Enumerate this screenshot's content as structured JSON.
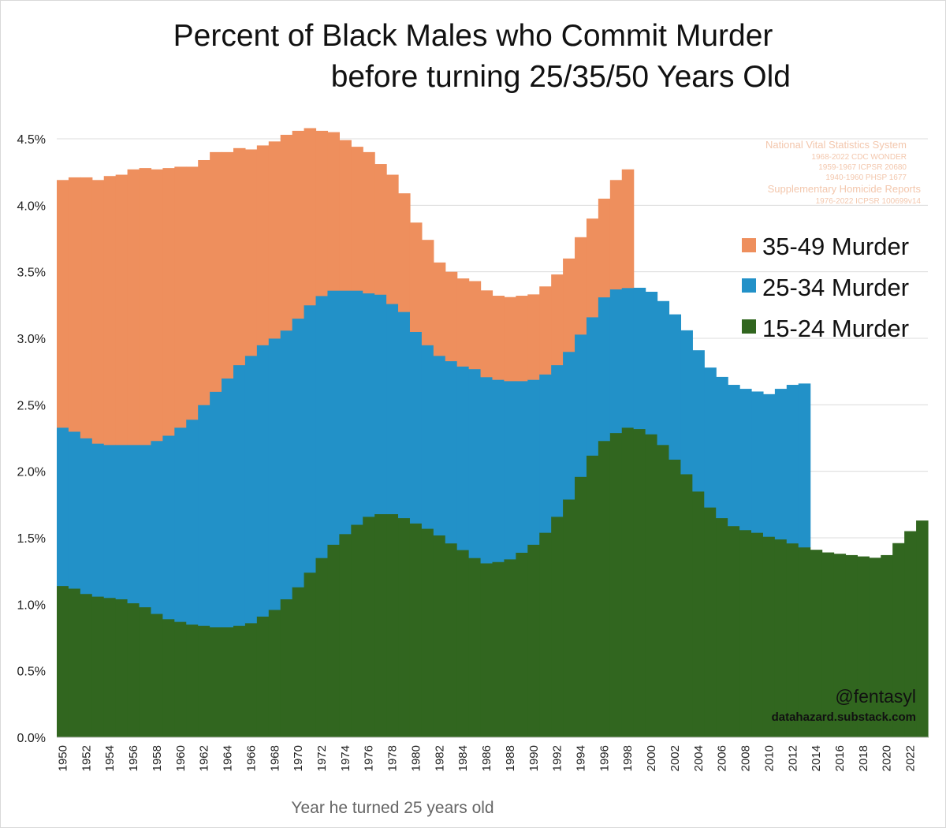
{
  "chart_data": {
    "type": "bar",
    "stacked": true,
    "title_lines": [
      "Percent of Black Males who Commit Murder",
      "before turning 25/35/50 Years Old"
    ],
    "xlabel": "Year he turned 25 years old",
    "ylabel": "",
    "ylim": [
      0,
      4.5
    ],
    "y_ticks": [
      0,
      0.5,
      1,
      1.5,
      2,
      2.5,
      3,
      3.5,
      4,
      4.5
    ],
    "y_tick_labels": [
      "0.0%",
      "0.5%",
      "1.0%",
      "1.5%",
      "2.0%",
      "2.5%",
      "3.0%",
      "3.5%",
      "4.0%",
      "4.5%"
    ],
    "x_ticks": [
      "1950",
      "1952",
      "1954",
      "1956",
      "1958",
      "1960",
      "1962",
      "1964",
      "1966",
      "1968",
      "1970",
      "1972",
      "1974",
      "1976",
      "1978",
      "1980",
      "1982",
      "1984",
      "1986",
      "1988",
      "1990",
      "1992",
      "1994",
      "1996",
      "1998",
      "2000",
      "2002",
      "2004",
      "2006",
      "2008",
      "2010",
      "2012",
      "2014",
      "2016",
      "2018",
      "2020",
      "2022"
    ],
    "grid": true,
    "legend_position": "right",
    "years_start": 1950,
    "years_end": 2023,
    "series": [
      {
        "name": "15-24 Murder",
        "color": "#31661f",
        "values": [
          1.14,
          1.12,
          1.08,
          1.06,
          1.05,
          1.04,
          1.01,
          0.98,
          0.93,
          0.89,
          0.87,
          0.85,
          0.84,
          0.83,
          0.83,
          0.84,
          0.86,
          0.91,
          0.96,
          1.04,
          1.13,
          1.24,
          1.35,
          1.45,
          1.53,
          1.6,
          1.66,
          1.68,
          1.68,
          1.65,
          1.61,
          1.57,
          1.52,
          1.46,
          1.41,
          1.35,
          1.31,
          1.32,
          1.34,
          1.39,
          1.45,
          1.54,
          1.66,
          1.79,
          1.96,
          2.12,
          2.23,
          2.29,
          2.33,
          2.32,
          2.28,
          2.2,
          2.09,
          1.98,
          1.85,
          1.73,
          1.65,
          1.59,
          1.56,
          1.54,
          1.51,
          1.49,
          1.46,
          1.43,
          1.41,
          1.39,
          1.38,
          1.37,
          1.36,
          1.35,
          1.37,
          1.46,
          1.55,
          1.63
        ]
      },
      {
        "name": "25-34 Murder",
        "color": "#2291c8",
        "values": [
          1.19,
          1.18,
          1.17,
          1.15,
          1.15,
          1.16,
          1.19,
          1.22,
          1.3,
          1.38,
          1.46,
          1.54,
          1.66,
          1.77,
          1.87,
          1.96,
          2.01,
          2.04,
          2.04,
          2.02,
          2.02,
          2.01,
          1.97,
          1.91,
          1.83,
          1.76,
          1.68,
          1.65,
          1.58,
          1.55,
          1.44,
          1.38,
          1.35,
          1.37,
          1.38,
          1.42,
          1.4,
          1.37,
          1.34,
          1.29,
          1.24,
          1.19,
          1.14,
          1.11,
          1.07,
          1.04,
          1.08,
          1.08,
          1.05,
          1.06,
          1.07,
          1.08,
          1.09,
          1.08,
          1.06,
          1.05,
          1.06,
          1.06,
          1.06,
          1.06,
          1.07,
          1.13,
          1.19,
          1.23
        ]
      },
      {
        "name": "35-49 Murder",
        "color": "#ee8f5d",
        "values": [
          1.86,
          1.91,
          1.96,
          1.98,
          2.02,
          2.03,
          2.07,
          2.08,
          2.04,
          2.01,
          1.96,
          1.9,
          1.84,
          1.8,
          1.7,
          1.63,
          1.55,
          1.5,
          1.48,
          1.47,
          1.41,
          1.33,
          1.24,
          1.19,
          1.13,
          1.08,
          1.06,
          0.98,
          0.97,
          0.89,
          0.82,
          0.79,
          0.7,
          0.67,
          0.66,
          0.66,
          0.65,
          0.63,
          0.63,
          0.64,
          0.64,
          0.66,
          0.68,
          0.7,
          0.73,
          0.74,
          0.74,
          0.82,
          0.89
        ]
      }
    ],
    "legend_entries": [
      "35-49 Murder",
      "25-34 Murder",
      "15-24 Murder"
    ],
    "source_lines": [
      "National Vital Statistics System",
      "1968-2022 CDC WONDER",
      "1959-1967 ICPSR 20680",
      "1940-1960 PHSP 1677",
      "Supplementary Homicide Reports",
      "1976-2022 ICPSR 100699v14"
    ],
    "credit": {
      "handle": "@fentasyl",
      "site": "datahazard.substack.com"
    }
  }
}
